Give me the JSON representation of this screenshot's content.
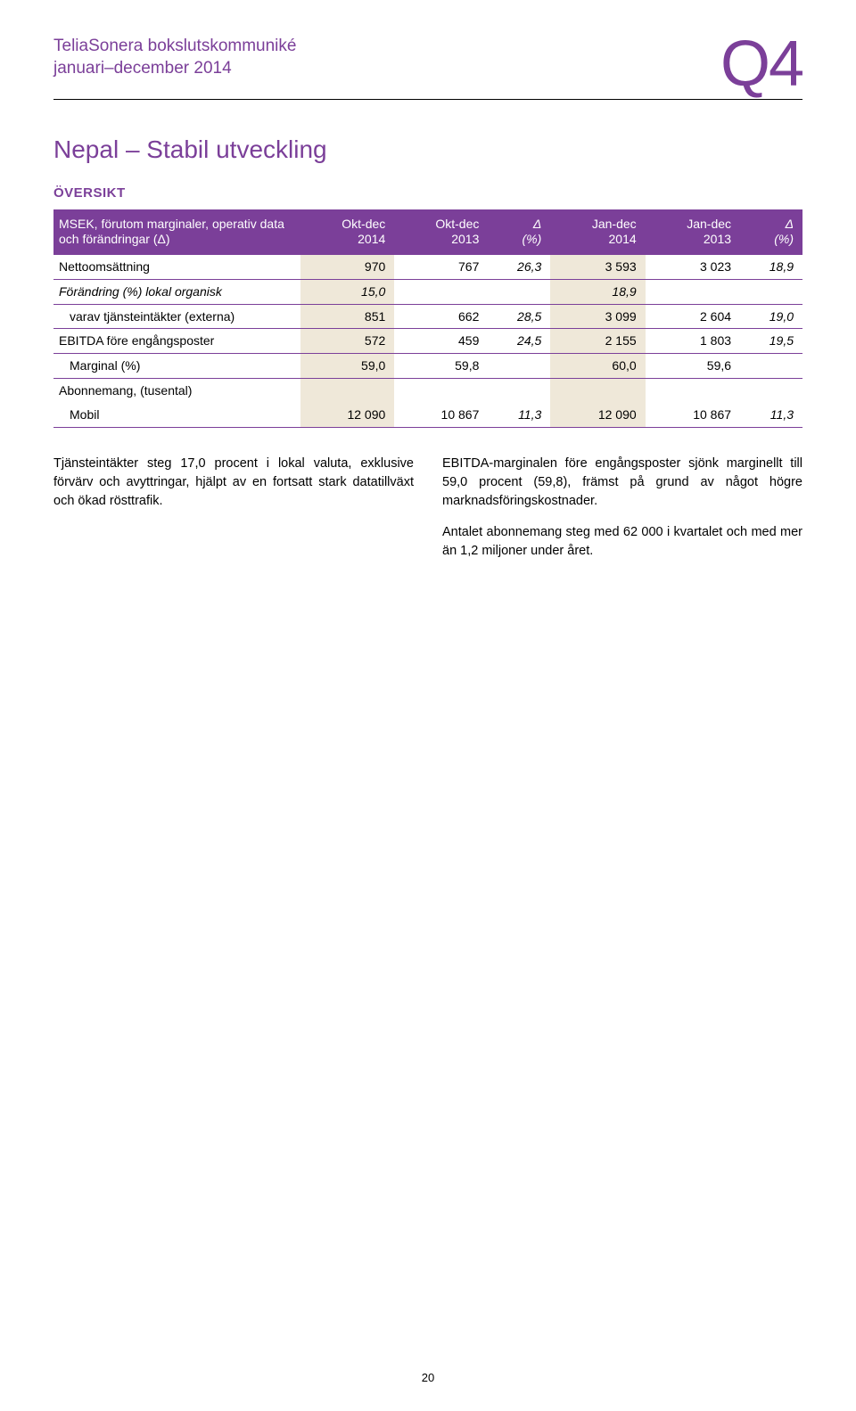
{
  "colors": {
    "brand_purple": "#7b3f99",
    "highlight_beige": "#efe8d9",
    "row_border": "#7b3f99",
    "text": "#000000",
    "background": "#ffffff"
  },
  "header": {
    "line1": "TeliaSonera bokslutskommuniké",
    "line2": "januari–december 2014",
    "quarter": "Q4"
  },
  "section_title": "Nepal – Stabil utveckling",
  "overview_label": "ÖVERSIKT",
  "table": {
    "header": {
      "label": "MSEK, förutom marginaler, operativ data och förändringar (Δ)",
      "cols": [
        "Okt-dec\n2014",
        "Okt-dec\n2013",
        "Δ\n(%)",
        "Jan-dec\n2014",
        "Jan-dec\n2013",
        "Δ\n(%)"
      ]
    },
    "rows": [
      {
        "label": "Nettoomsättning",
        "cells": [
          "970",
          "767",
          "26,3",
          "3 593",
          "3 023",
          "18,9"
        ],
        "italic_cols": [
          2,
          5
        ],
        "hl_cols": [
          0,
          3
        ]
      },
      {
        "label": "Förändring (%) lokal organisk",
        "label_italic": true,
        "cells": [
          "15,0",
          "",
          "",
          "18,9",
          "",
          ""
        ],
        "italic_cols": [
          0,
          3
        ],
        "hl_cols": [
          0,
          3
        ]
      },
      {
        "label": "varav tjänsteintäkter (externa)",
        "indent": true,
        "cells": [
          "851",
          "662",
          "28,5",
          "3 099",
          "2 604",
          "19,0"
        ],
        "italic_cols": [
          2,
          5
        ],
        "hl_cols": [
          0,
          3
        ]
      },
      {
        "label": "EBITDA före engångsposter",
        "cells": [
          "572",
          "459",
          "24,5",
          "2 155",
          "1 803",
          "19,5"
        ],
        "italic_cols": [
          2,
          5
        ],
        "hl_cols": [
          0,
          3
        ]
      },
      {
        "label": "Marginal (%)",
        "indent": true,
        "cells": [
          "59,0",
          "59,8",
          "",
          "60,0",
          "59,6",
          ""
        ],
        "hl_cols": [
          0,
          3
        ]
      },
      {
        "label": "Abonnemang, (tusental)",
        "cells": [
          "",
          "",
          "",
          "",
          "",
          ""
        ],
        "hl_cols": [
          0,
          3
        ],
        "noborder": true
      },
      {
        "label": "Mobil",
        "indent": true,
        "cells": [
          "12 090",
          "10 867",
          "11,3",
          "12 090",
          "10 867",
          "11,3"
        ],
        "italic_cols": [
          2,
          5
        ],
        "hl_cols": [
          0,
          3
        ]
      }
    ]
  },
  "body": {
    "left": [
      "Tjänsteintäkter steg 17,0 procent i lokal valuta, exklusive förvärv och avyttringar, hjälpt av en fortsatt stark datatillväxt och ökad rösttrafik."
    ],
    "right": [
      "EBITDA-marginalen före engångsposter sjönk marginellt till 59,0 procent (59,8), främst på grund av något högre marknadsföringskostnader.",
      "Antalet abonnemang steg med 62 000 i kvartalet och med mer än 1,2 miljoner under året."
    ]
  },
  "page_number": "20"
}
